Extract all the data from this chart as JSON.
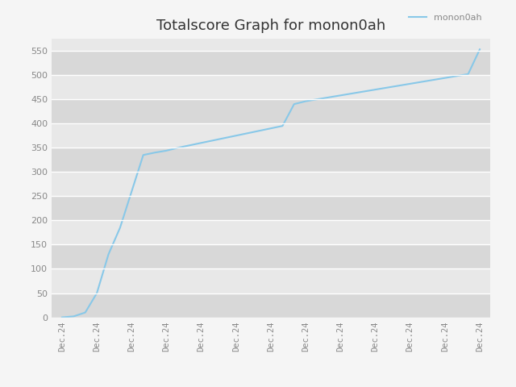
{
  "title": "Totalscore Graph for monon0ah",
  "legend_label": "monon0ah",
  "line_color": "#88c8e8",
  "background_color": "#e8e8e8",
  "figure_background": "#f5f5f5",
  "band_colors": [
    "#d8d8d8",
    "#e8e8e8"
  ],
  "x_labels": [
    "Dec.24",
    "Dec.24",
    "Dec.24",
    "Dec.24",
    "Dec.24",
    "Dec.24",
    "Dec.24",
    "Dec.24",
    "Dec.24",
    "Dec.24",
    "Dec.24",
    "Dec.24",
    "Dec.24"
  ],
  "y_values": [
    0,
    2,
    10,
    50,
    130,
    185,
    260,
    335,
    340,
    344,
    350,
    355,
    360,
    365,
    370,
    375,
    380,
    385,
    390,
    395,
    440,
    446,
    450,
    454,
    458,
    462,
    466,
    470,
    474,
    478,
    482,
    486,
    490,
    494,
    498,
    502,
    553
  ],
  "ylim": [
    0,
    575
  ],
  "yticks": [
    0,
    50,
    100,
    150,
    200,
    250,
    300,
    350,
    400,
    450,
    500,
    550
  ],
  "title_fontsize": 13,
  "tick_label_color": "#888888",
  "grid_color": "#ffffff",
  "line_width": 1.5,
  "n_xticks": 13
}
